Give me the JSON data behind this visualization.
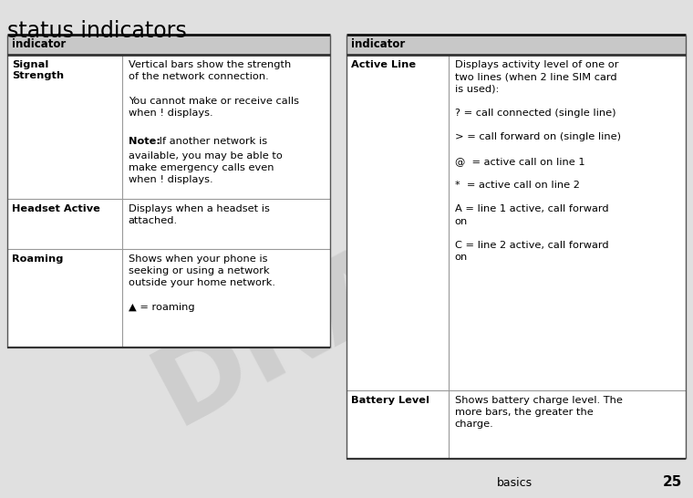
{
  "page_title": "status indicators",
  "page_number": "25",
  "page_number_label": "basics",
  "background_color": "#e0e0e0",
  "table_bg": "#ffffff",
  "header_bg": "#c8c8c8",
  "title_fontsize": 17,
  "header_fontsize": 8.5,
  "body_fontsize": 8.2,
  "left_table": {
    "header": "indicator",
    "col_split": 0.36,
    "rows": [
      {
        "label": "Signal\nStrength",
        "segments": [
          {
            "text": "Vertical bars show the strength\nof the network connection.",
            "bold": false
          },
          {
            "text": "\nYou cannot make or receive calls\nwhen ! displays.",
            "bold": false
          },
          {
            "text": "\nNote:",
            "bold": true
          },
          {
            "text": " If another network is\navailable, you may be able to\nmake emergency calls even\nwhen ! displays.",
            "bold": false
          }
        ]
      },
      {
        "label": "Headset Active",
        "segments": [
          {
            "text": "Displays when a headset is\nattached.",
            "bold": false
          }
        ]
      },
      {
        "label": "Roaming",
        "segments": [
          {
            "text": "Shows when your phone is\nseeking or using a network\noutside your home network.\n\n▲ = roaming",
            "bold": false
          }
        ]
      }
    ]
  },
  "right_table": {
    "header": "indicator",
    "col_split": 0.31,
    "rows": [
      {
        "label": "Active Line",
        "segments": [
          {
            "text": "Displays activity level of one or\ntwo lines (when 2 line SIM card\nis used):\n\n[icon_call] = call connected (single line)\n\n[icon_fwd] = call forward on (single line)\n\n[icon_1] = active call on line 1\n\n[icon_2] = active call on line 2\n\n[icon_1fwd] = line 1 active, call forward\non\n\n[icon_2fwd] = line 2 active, call forward\non",
            "bold": false
          }
        ]
      },
      {
        "label": "Battery Level",
        "segments": [
          {
            "text": "Shows battery charge level. The\nmore bars, the greater the\ncharge.",
            "bold": false
          }
        ]
      }
    ]
  },
  "watermark_text": "DRAFT",
  "watermark_color": "#c0c0c0",
  "watermark_alpha": 0.55
}
